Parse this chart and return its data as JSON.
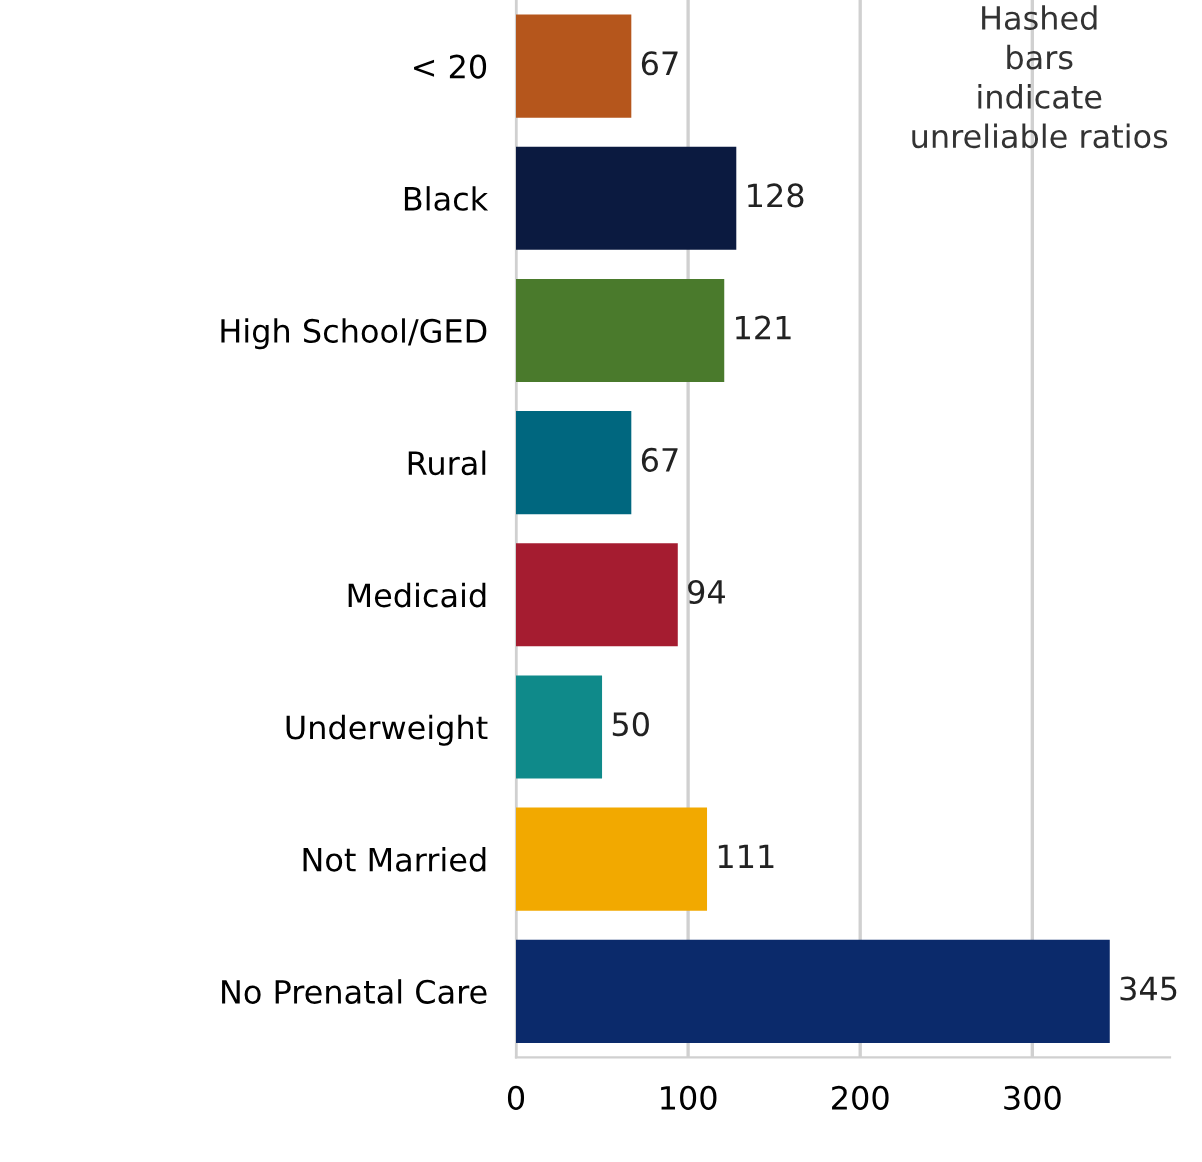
{
  "chart_data": {
    "type": "bar",
    "orientation": "horizontal",
    "categories": [
      "< 20",
      "Black",
      "High School/GED",
      "Rural",
      "Medicaid",
      "Underweight",
      "Not Married",
      "No Prenatal Care"
    ],
    "values": [
      67,
      128,
      121,
      67,
      94,
      50,
      111,
      345
    ],
    "colors": [
      "#b5561c",
      "#0b1a40",
      "#4a7a2c",
      "#00677f",
      "#a51c30",
      "#0f8a8a",
      "#f2a900",
      "#0b2a6b"
    ],
    "xlim": [
      0,
      380
    ],
    "xticks": [
      0,
      100,
      200,
      300
    ],
    "grid": "x",
    "data_labels": true,
    "annotations": [
      "Hashed bars indicate unreliable ratios"
    ]
  }
}
